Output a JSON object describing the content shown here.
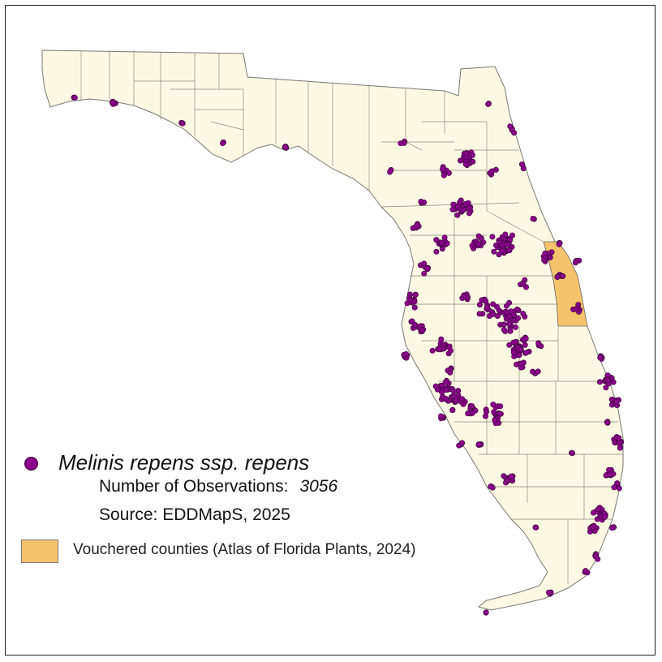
{
  "map": {
    "colors": {
      "land": "#fdf8e3",
      "county_border": "#8a8a7a",
      "vouchered": "#f5c36b",
      "observation": "#8b008b",
      "observation_outline": "#3a003a"
    }
  },
  "legend": {
    "species_name": "Melinis repens ssp. repens",
    "observations_label": "Number of Observations:",
    "observations_count": "3056",
    "source": "Source: EDDMapS, 2025",
    "vouchered_label": "Vouchered counties (Atlas of Florida Plants, 2024)"
  }
}
